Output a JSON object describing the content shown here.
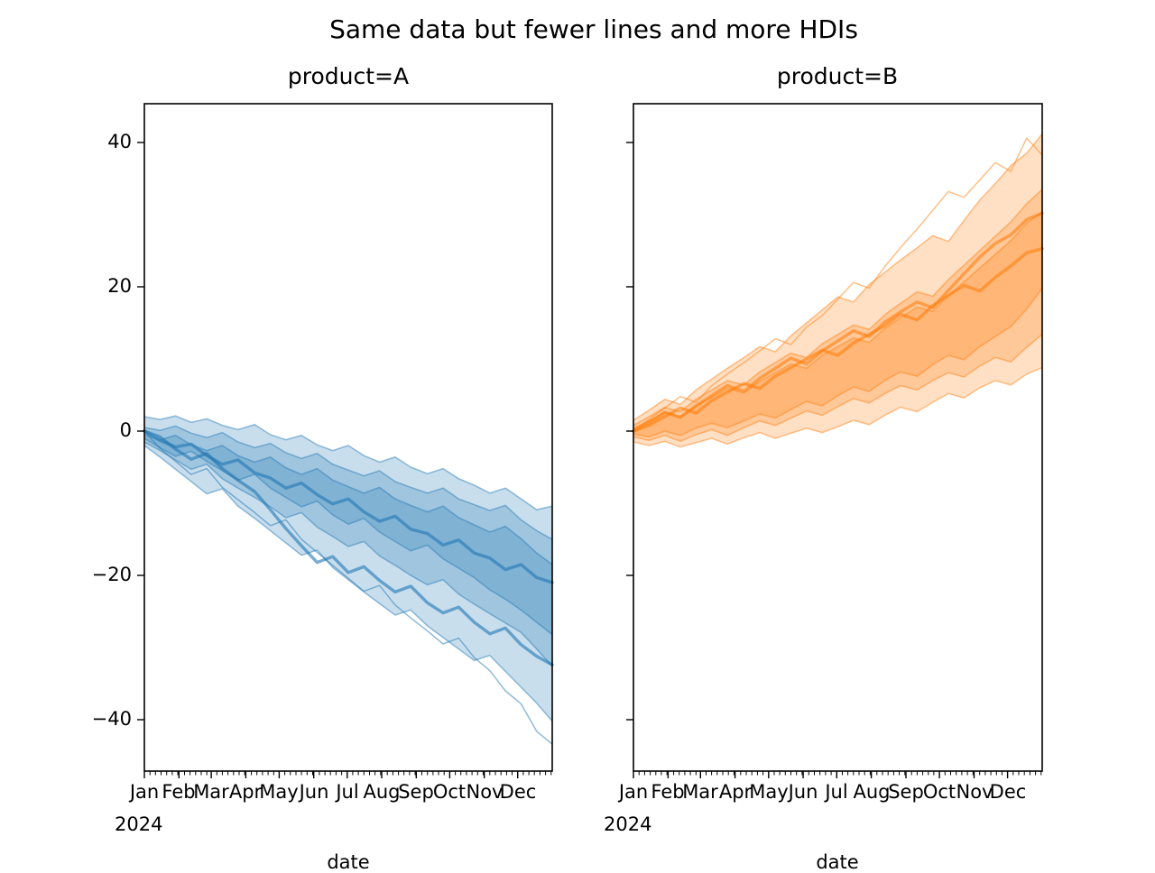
{
  "figure": {
    "suptitle": "Same data but fewer lines and more HDIs",
    "background_color": "#ffffff",
    "text_color": "#000000"
  },
  "chart_data": [
    {
      "type": "area",
      "subtype": "hdi-bands-with-sample-lines",
      "title": "product=A",
      "xlabel": "date",
      "year_label": "2024",
      "color": "#1f77b4",
      "legend": "none",
      "grid": "off",
      "x_ticklabels": [
        "Jan",
        "Feb",
        "Mar",
        "Apr",
        "May",
        "Jun",
        "Jul",
        "Aug",
        "Sep",
        "Oct",
        "Nov",
        "Dec"
      ],
      "y_ticks": [
        -40,
        -20,
        0,
        20,
        40
      ],
      "y_ticklabels": [
        "−40",
        "−20",
        "0",
        "20",
        "40"
      ],
      "y_ticklabels_shown": true,
      "ylim": [
        -47.125,
        45.375
      ],
      "xlim_days": [
        0,
        366
      ],
      "x_days": [
        0,
        14,
        28,
        42,
        56,
        70,
        84,
        99,
        113,
        127,
        141,
        155,
        169,
        183,
        197,
        211,
        225,
        239,
        254,
        268,
        282,
        296,
        310,
        324,
        338,
        352,
        366
      ],
      "bands": [
        {
          "name": "hdi-wide",
          "upper": [
            2.0,
            1.6,
            2.1,
            1.2,
            1.7,
            0.8,
            0.2,
            0.9,
            -0.5,
            -1.2,
            -0.6,
            -1.9,
            -2.7,
            -2.0,
            -3.4,
            -4.3,
            -3.6,
            -5.0,
            -5.9,
            -5.2,
            -6.6,
            -7.5,
            -8.6,
            -7.9,
            -9.4,
            -10.9,
            -10.4
          ],
          "lower": [
            -2.0,
            -3.6,
            -5.3,
            -7.0,
            -8.7,
            -8.0,
            -10.4,
            -12.1,
            -13.8,
            -15.5,
            -17.2,
            -16.5,
            -18.9,
            -20.6,
            -22.3,
            -23.9,
            -25.5,
            -24.8,
            -27.0,
            -28.6,
            -30.2,
            -31.8,
            -31.1,
            -33.3,
            -35.5,
            -37.7,
            -40.2
          ]
        },
        {
          "name": "hdi-mid",
          "upper": [
            0.5,
            0.1,
            0.7,
            -0.3,
            -0.9,
            -0.2,
            -1.5,
            -2.3,
            -1.7,
            -3.0,
            -3.8,
            -3.1,
            -4.6,
            -5.4,
            -6.2,
            -5.5,
            -7.0,
            -7.8,
            -8.6,
            -7.9,
            -9.4,
            -10.2,
            -11.0,
            -10.3,
            -12.3,
            -13.8,
            -15.0
          ],
          "lower": [
            -1.5,
            -2.7,
            -4.0,
            -5.3,
            -4.6,
            -6.6,
            -7.9,
            -9.2,
            -10.5,
            -12.0,
            -11.3,
            -13.3,
            -14.6,
            -16.0,
            -15.3,
            -17.3,
            -18.6,
            -20.0,
            -21.3,
            -20.6,
            -22.6,
            -24.0,
            -25.3,
            -26.6,
            -27.9,
            -30.2,
            -32.6
          ]
        },
        {
          "name": "hdi-narrow",
          "upper": [
            -0.5,
            -1.2,
            -0.6,
            -1.9,
            -2.7,
            -2.0,
            -3.4,
            -4.3,
            -3.6,
            -5.1,
            -6.0,
            -5.2,
            -6.8,
            -7.7,
            -8.6,
            -7.8,
            -9.4,
            -10.3,
            -11.2,
            -10.4,
            -12.0,
            -13.0,
            -14.0,
            -13.2,
            -14.9,
            -16.9,
            -18.5
          ],
          "lower": [
            -1.0,
            -2.3,
            -3.5,
            -2.8,
            -4.2,
            -5.5,
            -6.8,
            -6.0,
            -7.9,
            -9.2,
            -10.5,
            -9.7,
            -11.6,
            -12.9,
            -12.1,
            -14.0,
            -15.3,
            -16.6,
            -15.8,
            -17.7,
            -19.0,
            -20.3,
            -22.0,
            -23.3,
            -24.8,
            -26.5,
            -28.2
          ]
        }
      ],
      "lines": [
        {
          "name": "sample-line-1",
          "weight": "thick",
          "values": [
            0,
            -1.3,
            -2.2,
            -1.8,
            -3.4,
            -4.6,
            -4.0,
            -5.8,
            -6.5,
            -7.9,
            -7.2,
            -8.8,
            -10.1,
            -9.4,
            -11.2,
            -12.5,
            -11.8,
            -13.6,
            -14.2,
            -15.8,
            -15.1,
            -16.9,
            -17.6,
            -19.2,
            -18.5,
            -20.3,
            -21.0
          ]
        },
        {
          "name": "sample-line-2",
          "weight": "thick",
          "values": [
            0,
            -0.8,
            -2.5,
            -3.9,
            -3.1,
            -5.2,
            -6.8,
            -8.4,
            -10.9,
            -13.5,
            -15.9,
            -18.2,
            -17.4,
            -19.6,
            -18.8,
            -20.7,
            -22.3,
            -21.5,
            -23.8,
            -25.2,
            -24.4,
            -26.5,
            -28.1,
            -27.3,
            -29.6,
            -31.2,
            -32.4
          ]
        },
        {
          "name": "sample-line-3",
          "weight": "thin",
          "values": [
            0,
            -2.4,
            -4.2,
            -6.0,
            -5.2,
            -7.8,
            -9.5,
            -11.3,
            -13.1,
            -12.3,
            -15.0,
            -16.8,
            -18.6,
            -20.4,
            -22.2,
            -21.4,
            -24.1,
            -25.9,
            -27.7,
            -29.5,
            -28.7,
            -31.4,
            -33.2,
            -36.0,
            -37.8,
            -41.6,
            -43.4
          ]
        }
      ]
    },
    {
      "type": "area",
      "subtype": "hdi-bands-with-sample-lines",
      "title": "product=B",
      "xlabel": "date",
      "year_label": "2024",
      "color": "#ff7f0e",
      "legend": "none",
      "grid": "off",
      "x_ticklabels": [
        "Jan",
        "Feb",
        "Mar",
        "Apr",
        "May",
        "Jun",
        "Jul",
        "Aug",
        "Sep",
        "Oct",
        "Nov",
        "Dec"
      ],
      "y_ticks": [
        -40,
        -20,
        0,
        20,
        40
      ],
      "y_ticklabels": [
        "−40",
        "−20",
        "0",
        "20",
        "40"
      ],
      "y_ticklabels_shown": false,
      "ylim": [
        -47.125,
        45.375
      ],
      "xlim_days": [
        0,
        366
      ],
      "x_days": [
        0,
        14,
        28,
        42,
        56,
        70,
        84,
        99,
        113,
        127,
        141,
        155,
        169,
        183,
        197,
        211,
        225,
        239,
        254,
        268,
        282,
        296,
        310,
        324,
        338,
        352,
        366
      ],
      "bands": [
        {
          "name": "hdi-wide",
          "upper": [
            1.5,
            2.9,
            4.4,
            3.7,
            5.7,
            7.2,
            8.7,
            10.2,
            11.7,
            11.0,
            13.2,
            15.0,
            16.8,
            18.6,
            17.9,
            20.3,
            22.0,
            23.7,
            25.4,
            27.1,
            26.3,
            29.2,
            32.0,
            34.3,
            36.8,
            38.5,
            41.2
          ],
          "lower": [
            -1.5,
            -2.0,
            -1.4,
            -2.2,
            -1.6,
            -1.0,
            -1.8,
            -0.9,
            -0.2,
            -1.0,
            -0.3,
            0.4,
            -0.2,
            0.6,
            1.5,
            0.9,
            2.2,
            3.3,
            2.7,
            4.0,
            5.2,
            4.6,
            6.0,
            7.0,
            6.4,
            7.9,
            8.8
          ]
        },
        {
          "name": "hdi-mid",
          "upper": [
            0.8,
            2.0,
            3.3,
            2.7,
            4.4,
            5.7,
            7.0,
            6.4,
            8.2,
            9.5,
            10.8,
            10.2,
            12.1,
            13.4,
            14.7,
            14.1,
            16.1,
            17.7,
            19.3,
            18.7,
            21.0,
            23.0,
            25.0,
            27.0,
            29.0,
            31.5,
            33.5
          ],
          "lower": [
            -0.8,
            -1.3,
            -0.6,
            -1.4,
            -0.5,
            0.2,
            -0.6,
            0.5,
            1.4,
            0.8,
            1.8,
            2.8,
            2.2,
            3.4,
            4.5,
            3.9,
            5.2,
            6.3,
            5.7,
            7.0,
            8.1,
            7.5,
            9.0,
            10.2,
            9.6,
            11.6,
            13.4
          ]
        },
        {
          "name": "hdi-narrow",
          "upper": [
            0.4,
            1.4,
            2.6,
            2.0,
            3.5,
            4.7,
            5.9,
            5.3,
            6.9,
            8.1,
            9.3,
            8.7,
            10.5,
            11.7,
            12.9,
            12.3,
            14.2,
            15.7,
            17.2,
            16.6,
            18.8,
            20.7,
            22.6,
            24.5,
            26.4,
            28.8,
            30.4
          ],
          "lower": [
            -0.4,
            -0.8,
            0.0,
            -0.6,
            0.4,
            1.1,
            0.5,
            1.4,
            2.4,
            1.8,
            3.0,
            4.1,
            3.5,
            4.9,
            6.1,
            5.5,
            7.0,
            8.2,
            7.6,
            9.2,
            10.5,
            9.9,
            11.7,
            13.1,
            14.5,
            16.9,
            19.8
          ]
        }
      ],
      "lines": [
        {
          "name": "sample-line-1",
          "weight": "thick",
          "values": [
            0,
            1.2,
            2.6,
            1.9,
            3.5,
            4.9,
            6.3,
            5.5,
            7.3,
            8.7,
            10.1,
            9.3,
            11.1,
            12.5,
            13.9,
            13.1,
            15.1,
            16.5,
            17.9,
            17.1,
            19.5,
            21.8,
            24.1,
            26.0,
            27.2,
            29.3,
            30.2
          ]
        },
        {
          "name": "sample-line-2",
          "weight": "thick",
          "values": [
            0,
            0.8,
            2.0,
            3.2,
            2.5,
            4.2,
            5.4,
            6.6,
            5.9,
            7.6,
            8.8,
            10.0,
            11.2,
            10.5,
            12.2,
            13.4,
            14.6,
            16.2,
            15.4,
            17.4,
            18.8,
            20.2,
            19.4,
            21.3,
            22.9,
            24.7,
            25.3
          ]
        },
        {
          "name": "sample-line-3",
          "weight": "thin",
          "values": [
            0,
            1.6,
            3.2,
            4.8,
            4.0,
            6.3,
            7.9,
            9.5,
            11.1,
            12.8,
            12.0,
            14.4,
            16.0,
            18.3,
            20.6,
            19.8,
            22.8,
            25.4,
            28.0,
            30.6,
            33.2,
            32.4,
            34.8,
            37.2,
            36.0,
            40.6,
            38.3
          ]
        }
      ]
    }
  ]
}
